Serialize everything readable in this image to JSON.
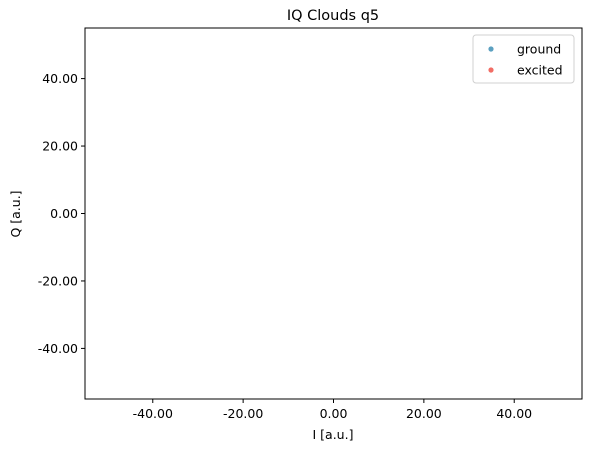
{
  "chart_data": {
    "type": "scatter",
    "title": "IQ Clouds q5",
    "xlabel": "I [a.u.]",
    "ylabel": "Q [a.u.]",
    "xlim": [
      -55,
      55
    ],
    "ylim": [
      -55,
      55
    ],
    "xticks": [
      -40,
      -20,
      0,
      20,
      40
    ],
    "yticks": [
      -40,
      -20,
      0,
      20,
      40
    ],
    "tick_labels_x": [
      "-40.00",
      "-20.00",
      "0.00",
      "20.00",
      "40.00"
    ],
    "tick_labels_y": [
      "-40.00",
      "-20.00",
      "0.00",
      "20.00",
      "40.00"
    ],
    "grid": false,
    "legend_placement": "top-right",
    "series": [
      {
        "name": "ground",
        "color": "#3e8fb5",
        "points": []
      },
      {
        "name": "excited",
        "color": "#f0544a",
        "points": []
      }
    ]
  }
}
